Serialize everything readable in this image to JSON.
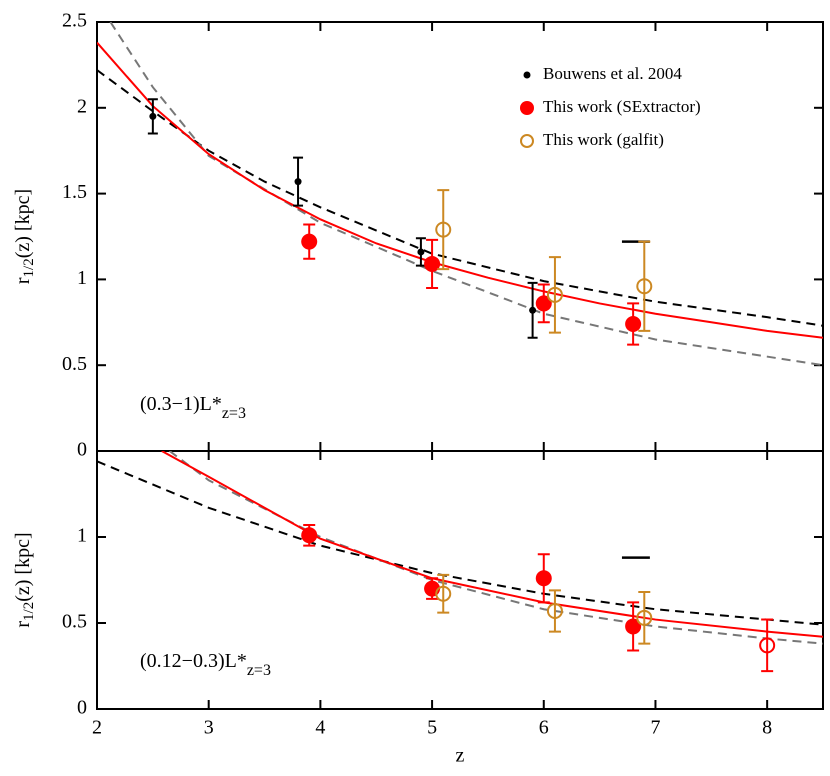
{
  "chart_data": [
    {
      "type": "scatter",
      "ylabel": "r",
      "ylabel_sub": "1/2",
      "ylabel_rest": "(z) [kpc]",
      "annotation": "(0.3−1)L*",
      "annotation_sub": "z=3",
      "xlim": [
        2,
        8.5
      ],
      "ylim": [
        0,
        2.5
      ],
      "yticks": [
        0,
        0.5,
        1,
        1.5,
        2,
        2.5
      ],
      "series": [
        {
          "name": "Bouwens et al. 2004",
          "color": "#000000",
          "marker": "dot",
          "x": [
            2.5,
            3.8,
            4.9,
            5.9
          ],
          "values": [
            1.95,
            1.57,
            1.16,
            0.82
          ],
          "errors": [
            0.1,
            0.14,
            0.08,
            0.16
          ]
        },
        {
          "name": "This work (SExtractor)",
          "color": "#ff0000",
          "marker": "filled",
          "x": [
            3.9,
            5.0,
            6.0,
            6.8
          ],
          "values": [
            1.22,
            1.09,
            0.86,
            0.74
          ],
          "errors": [
            0.1,
            0.14,
            0.11,
            0.12
          ]
        },
        {
          "name": "This work (galfit)",
          "color": "#cc8822",
          "marker": "open",
          "x": [
            5.1,
            6.1,
            6.9
          ],
          "values": [
            1.29,
            0.91,
            0.96
          ],
          "errors": [
            0.23,
            0.22,
            0.26
          ]
        }
      ],
      "lines": [
        {
          "color": "#000000",
          "dash": true,
          "x": [
            2,
            2.5,
            3,
            3.5,
            4,
            5,
            6,
            7,
            8,
            8.5
          ],
          "values": [
            2.22,
            1.98,
            1.75,
            1.57,
            1.42,
            1.15,
            0.99,
            0.87,
            0.78,
            0.73
          ]
        },
        {
          "color": "#777777",
          "dash": true,
          "x": [
            2.12,
            2.5,
            3,
            4,
            5,
            6,
            7,
            8.5
          ],
          "values": [
            2.5,
            2.12,
            1.72,
            1.33,
            1.05,
            0.8,
            0.65,
            0.5
          ]
        },
        {
          "color": "#ff0000",
          "dash": false,
          "x": [
            2,
            2.5,
            3,
            3.5,
            4,
            4.5,
            5,
            5.5,
            6,
            6.5,
            7,
            7.5,
            8,
            8.5
          ],
          "values": [
            2.38,
            2.01,
            1.73,
            1.52,
            1.35,
            1.21,
            1.1,
            1.01,
            0.93,
            0.86,
            0.8,
            0.75,
            0.7,
            0.66
          ]
        }
      ],
      "segments": [
        {
          "x": [
            6.7,
            6.95
          ],
          "y": 1.22
        }
      ]
    },
    {
      "type": "scatter",
      "xlabel": "z",
      "ylabel": "r",
      "ylabel_sub": "1/2",
      "ylabel_rest": "(z) [kpc]",
      "annotation": "(0.12−0.3)L*",
      "annotation_sub": "z=3",
      "xlim": [
        2,
        8.5
      ],
      "xticks": [
        2,
        3,
        4,
        5,
        6,
        7,
        8
      ],
      "ylim": [
        0,
        1.5
      ],
      "yticks": [
        0,
        0.5,
        1
      ],
      "series": [
        {
          "color": "#ff0000",
          "marker": "filled",
          "x": [
            3.9,
            5.0,
            6.0,
            6.8
          ],
          "values": [
            1.01,
            0.7,
            0.76,
            0.48
          ],
          "errors": [
            0.06,
            0.06,
            0.14,
            0.14
          ]
        },
        {
          "color": "#cc8822",
          "marker": "open",
          "x": [
            5.1,
            6.1,
            6.9
          ],
          "values": [
            0.67,
            0.57,
            0.53
          ],
          "errors": [
            0.11,
            0.12,
            0.15
          ]
        },
        {
          "color": "#ff0000",
          "marker": "open",
          "x": [
            8.0
          ],
          "values": [
            0.37
          ],
          "errors": [
            0.15
          ]
        }
      ],
      "lines": [
        {
          "color": "#000000",
          "dash": true,
          "x": [
            2,
            3,
            4,
            5,
            6,
            7,
            8,
            8.5
          ],
          "values": [
            1.44,
            1.17,
            0.95,
            0.79,
            0.67,
            0.58,
            0.52,
            0.49
          ]
        },
        {
          "color": "#777777",
          "dash": true,
          "x": [
            2.65,
            3,
            4,
            5,
            6,
            7,
            8,
            8.5
          ],
          "values": [
            1.5,
            1.33,
            1.0,
            0.75,
            0.58,
            0.48,
            0.41,
            0.38
          ]
        },
        {
          "color": "#ff0000",
          "dash": false,
          "x": [
            2.58,
            3,
            4,
            5,
            6,
            7,
            8,
            8.5
          ],
          "values": [
            1.5,
            1.35,
            0.99,
            0.76,
            0.62,
            0.52,
            0.45,
            0.42
          ]
        }
      ],
      "segments": [
        {
          "x": [
            6.7,
            6.95
          ],
          "y": 0.88
        }
      ]
    }
  ]
}
